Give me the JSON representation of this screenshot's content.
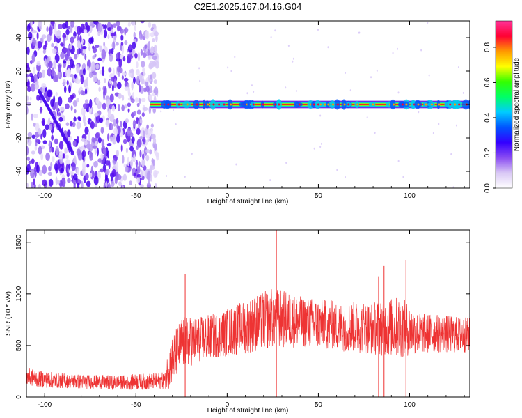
{
  "chart_data": [
    {
      "type": "heatmap",
      "title": "C2E1.2025.167.04.16.G04",
      "xlabel": "Height of straight line (km)",
      "ylabel": "Frequency (Hz)",
      "xlim": [
        -110,
        133
      ],
      "ylim": [
        -50,
        50
      ],
      "xticks": [
        -100,
        -50,
        0,
        50,
        100
      ],
      "yticks": [
        -40,
        -20,
        0,
        20,
        40
      ],
      "colorbar": {
        "label": "Normalized spectral amplitude",
        "range": [
          0,
          0.95
        ],
        "ticks": [
          0.0,
          0.2,
          0.4,
          0.6,
          0.8
        ],
        "colors": [
          "#ffffff",
          "#d9c8f5",
          "#8a4cf2",
          "#3300ff",
          "#0055ff",
          "#00ccff",
          "#00ff66",
          "#33ff00",
          "#ffff00",
          "#ff9900",
          "#ff0033",
          "#ff3399"
        ]
      },
      "ridge": {
        "frequency": 0,
        "x_start": -42,
        "x_end": 133,
        "peak_amplitude": 0.9
      },
      "noise_region_x": [
        -110,
        -38
      ],
      "grid": false
    },
    {
      "type": "line",
      "xlabel": "Height of straight line (km)",
      "ylabel": "SNR (10 * v/v)",
      "xlim": [
        -110,
        133
      ],
      "ylim": [
        0,
        1620
      ],
      "xticks": [
        -100,
        -50,
        0,
        50,
        100
      ],
      "yticks": [
        0,
        500,
        1000,
        1500
      ],
      "color": "#ee3333",
      "envelope": {
        "x": [
          -110,
          -100,
          -80,
          -60,
          -45,
          -34,
          -32,
          -25,
          -15,
          -5,
          10,
          25,
          40,
          60,
          80,
          95,
          105,
          133
        ],
        "mean": [
          200,
          170,
          150,
          140,
          150,
          160,
          300,
          520,
          560,
          600,
          680,
          770,
          730,
          690,
          670,
          680,
          620,
          600
        ],
        "spread": [
          90,
          80,
          70,
          70,
          80,
          80,
          220,
          260,
          220,
          220,
          260,
          300,
          250,
          240,
          260,
          300,
          200,
          170
        ]
      },
      "peaks": [
        {
          "x": -23,
          "y": 1190
        },
        {
          "x": 27,
          "y": 1620
        },
        {
          "x": 83,
          "y": 1170
        },
        {
          "x": 86,
          "y": 1270
        },
        {
          "x": 98,
          "y": 1330
        }
      ],
      "grid": false
    }
  ]
}
